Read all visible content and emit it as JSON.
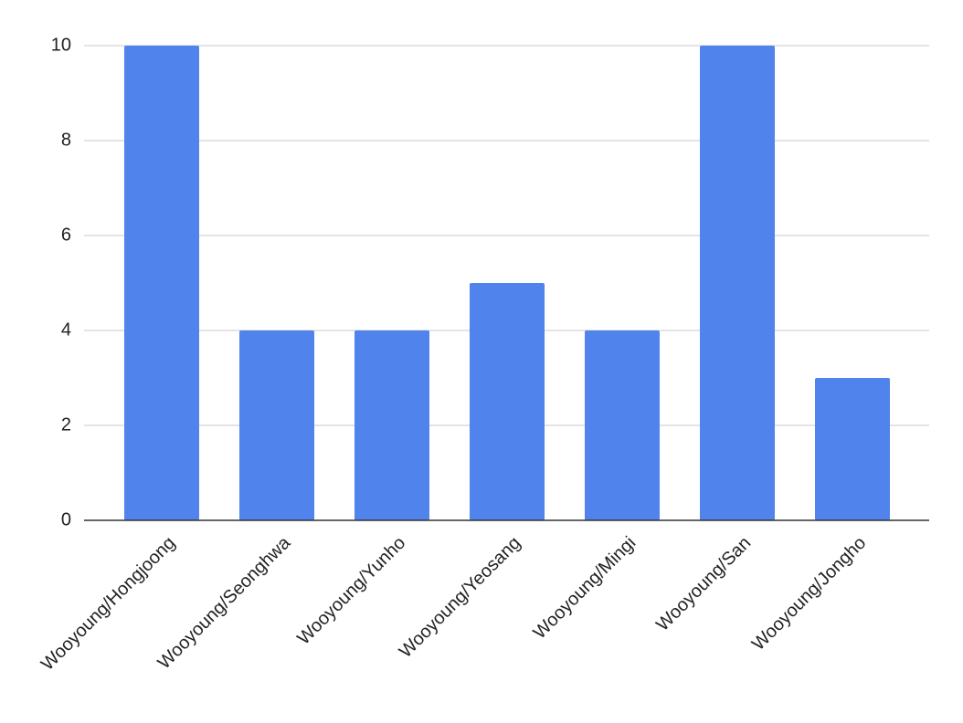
{
  "chart_data": {
    "type": "bar",
    "categories": [
      "Wooyoung/Hongjoong",
      "Wooyoung/Seonghwa",
      "Wooyoung/Yunho",
      "Wooyoung/Yeosang",
      "Wooyoung/Mingi",
      "Wooyoung/San",
      "Wooyoung/Jongho"
    ],
    "values": [
      10,
      4,
      4,
      5,
      4,
      10,
      3
    ],
    "color": "#5083ec",
    "ylim": [
      0,
      10
    ],
    "yticks": [
      0,
      2,
      4,
      6,
      8,
      10
    ],
    "grid": true
  }
}
